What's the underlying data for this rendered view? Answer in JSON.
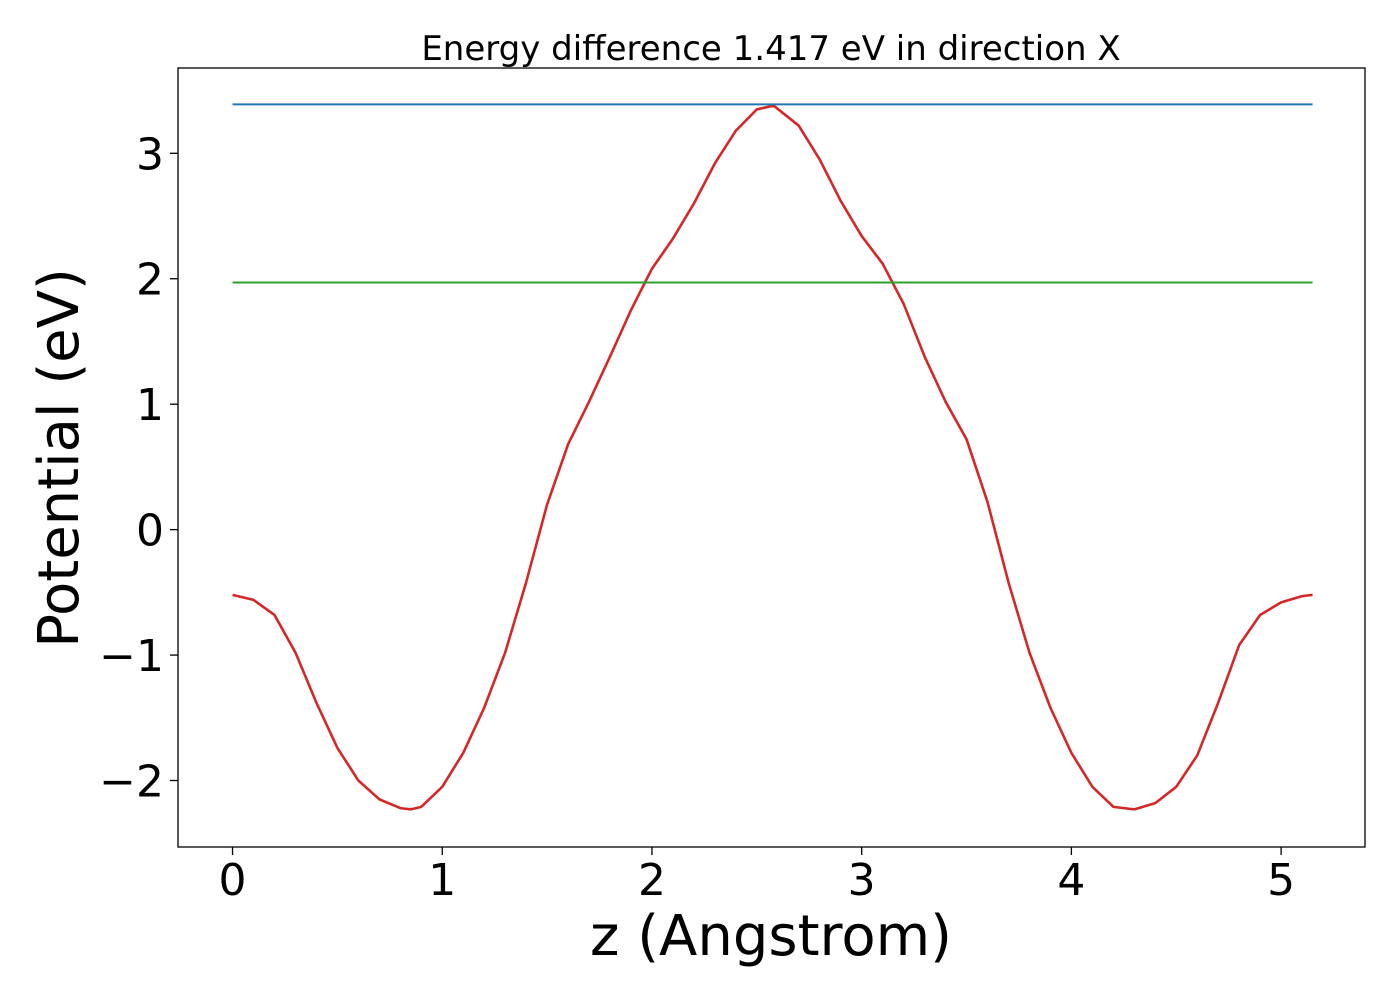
{
  "chart_data": {
    "type": "line",
    "title": "Energy difference 1.417 eV in direction X",
    "xlabel": "z (Angstrom)",
    "ylabel": "Potential (eV)",
    "xlim": [
      -0.26,
      5.4
    ],
    "ylim": [
      -2.53,
      3.68
    ],
    "x_ticks": [
      0,
      1,
      2,
      3,
      4,
      5
    ],
    "x_tick_labels": [
      "0",
      "1",
      "2",
      "3",
      "4",
      "5"
    ],
    "y_ticks": [
      -2,
      -1,
      0,
      1,
      2,
      3
    ],
    "y_tick_labels": [
      "−2",
      "−1",
      "0",
      "1",
      "2",
      "3"
    ],
    "grid": false,
    "series": [
      {
        "color": "#d62728",
        "x": [
          0,
          0.1,
          0.2,
          0.3,
          0.4,
          0.5,
          0.6,
          0.7,
          0.8,
          0.85,
          0.9,
          1.0,
          1.1,
          1.2,
          1.3,
          1.4,
          1.5,
          1.6,
          1.7,
          1.8,
          1.9,
          2.0,
          2.1,
          2.2,
          2.3,
          2.4,
          2.5,
          2.58,
          2.7,
          2.8,
          2.9,
          3.0,
          3.1,
          3.2,
          3.3,
          3.4,
          3.5,
          3.6,
          3.7,
          3.8,
          3.9,
          4.0,
          4.1,
          4.2,
          4.3,
          4.4,
          4.5,
          4.6,
          4.7,
          4.8,
          4.9,
          5.0,
          5.1,
          5.15
        ],
        "values": [
          -0.52,
          -0.56,
          -0.68,
          -0.98,
          -1.38,
          -1.74,
          -2.0,
          -2.15,
          -2.22,
          -2.23,
          -2.21,
          -2.05,
          -1.78,
          -1.42,
          -0.98,
          -0.42,
          0.2,
          0.68,
          1.02,
          1.38,
          1.75,
          2.08,
          2.32,
          2.6,
          2.92,
          3.18,
          3.35,
          3.38,
          3.22,
          2.95,
          2.62,
          2.34,
          2.12,
          1.8,
          1.38,
          1.02,
          0.72,
          0.22,
          -0.42,
          -0.98,
          -1.42,
          -1.78,
          -2.05,
          -2.21,
          -2.23,
          -2.18,
          -2.05,
          -1.8,
          -1.38,
          -0.92,
          -0.68,
          -0.58,
          -0.53,
          -0.52
        ]
      },
      {
        "color": "#1f77b4",
        "x": [
          0,
          5.15
        ],
        "values": [
          3.39,
          3.39
        ]
      },
      {
        "color": "#2ca02c",
        "x": [
          0,
          5.15
        ],
        "values": [
          1.97,
          1.97
        ]
      }
    ]
  }
}
